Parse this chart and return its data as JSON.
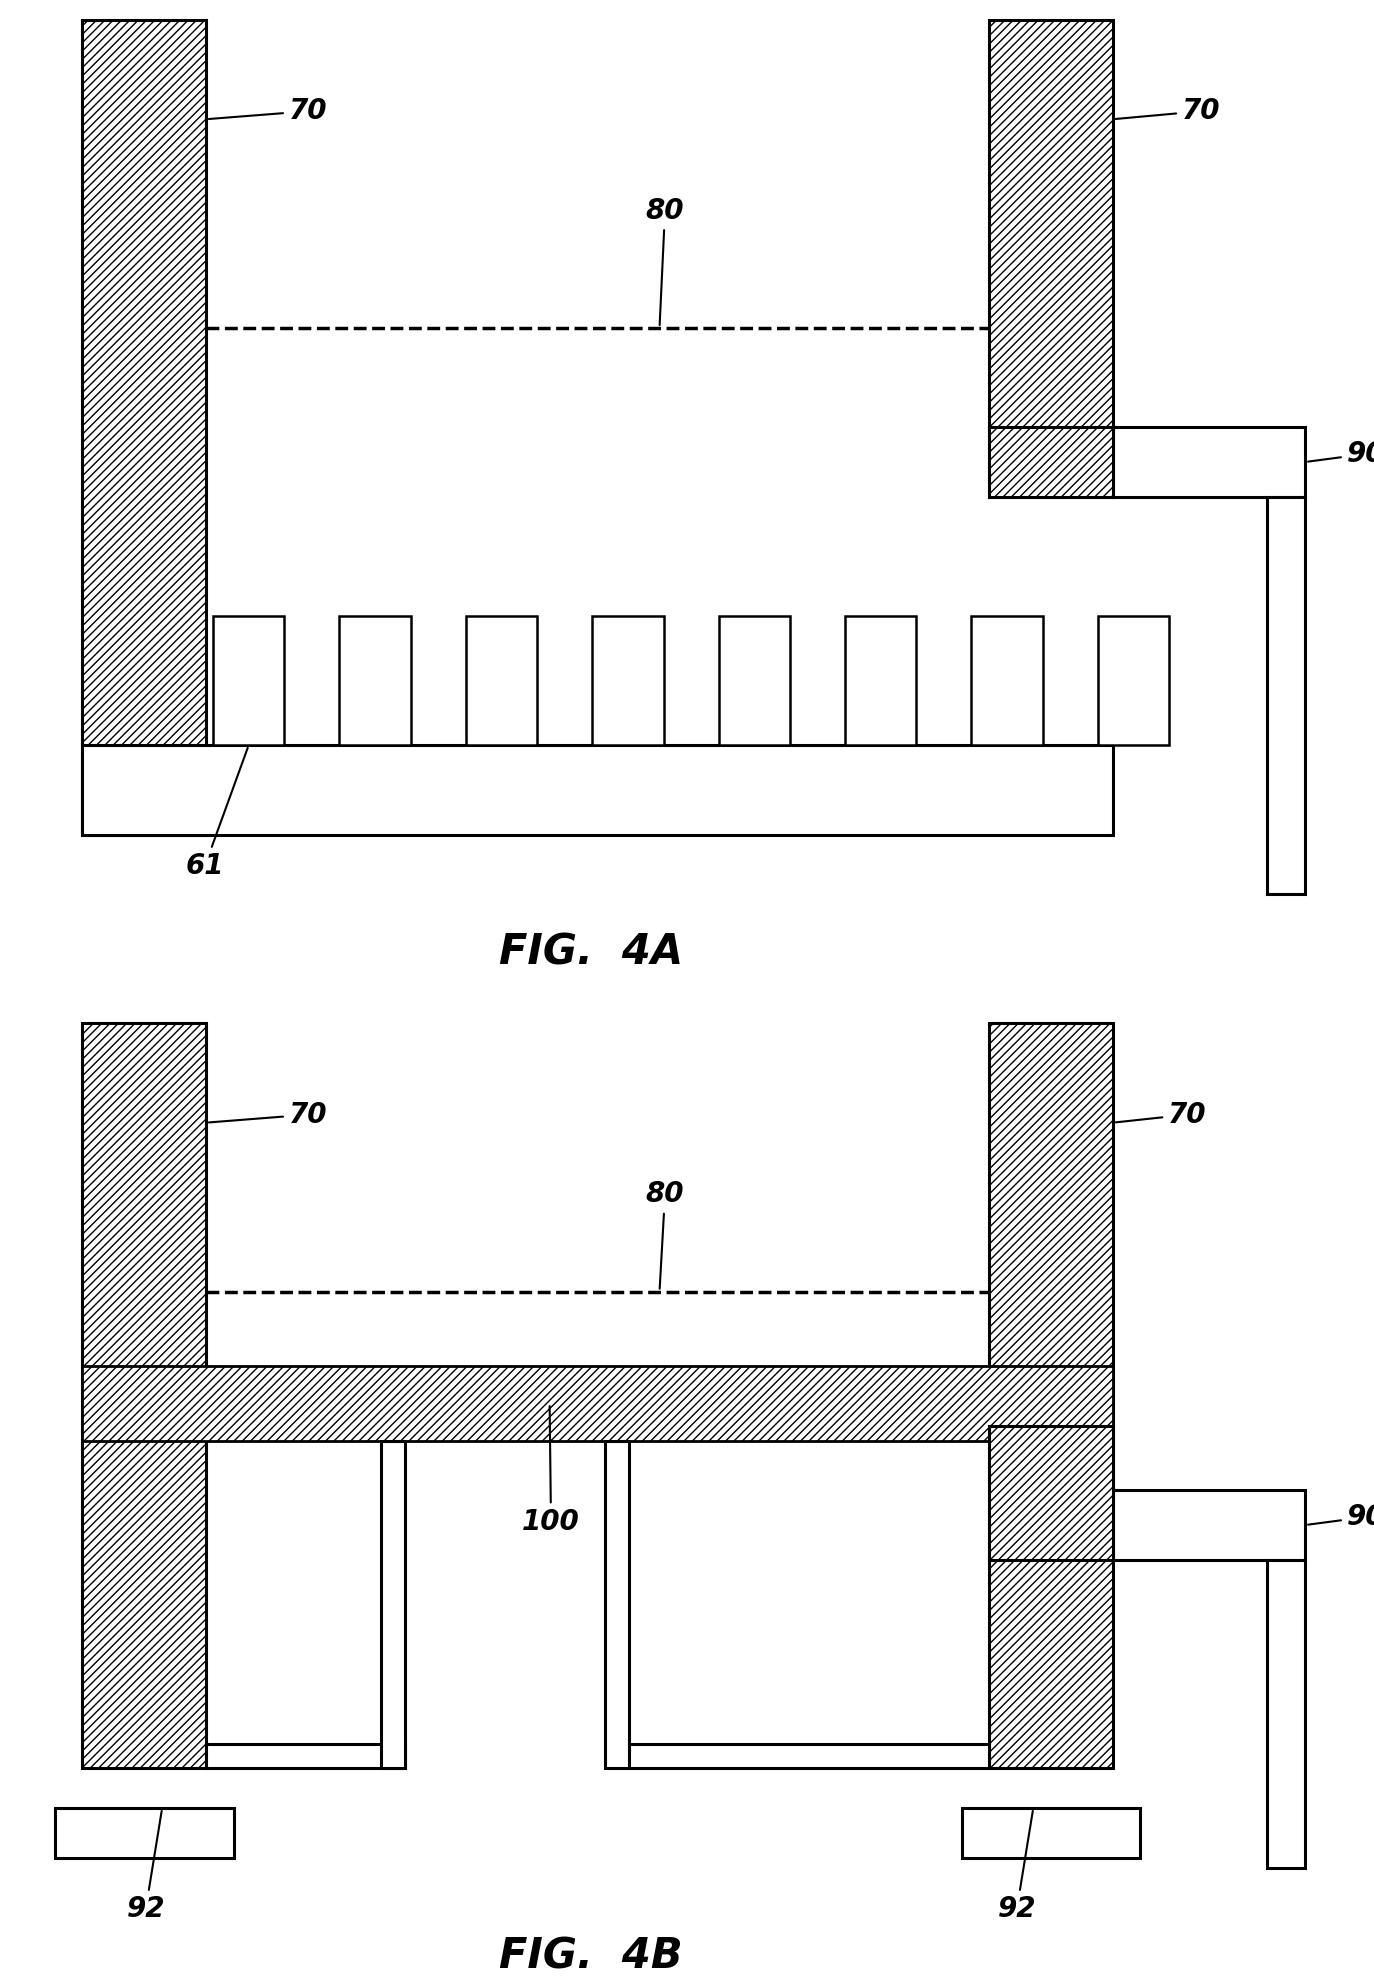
{
  "fig_width": 13.74,
  "fig_height": 19.87,
  "background_color": "#ffffff",
  "hatch_pattern": "////",
  "label_fontsize": 20,
  "title_fontsize": 30,
  "fig4a_title": "FIG.  4A",
  "fig4b_title": "FIG.  4B"
}
